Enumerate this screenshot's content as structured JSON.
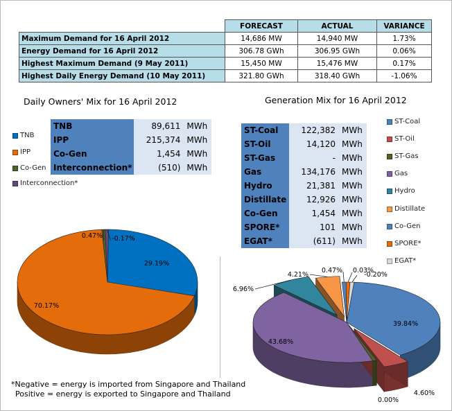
{
  "summary_table": {
    "headers": [
      "",
      "FORECAST",
      "ACTUAL",
      "VARIANCE"
    ],
    "rows": [
      {
        "label": "Maximum Demand for 16 April 2012",
        "forecast": "14,686  MW",
        "actual": "14,940  MW",
        "variance": "1.73%"
      },
      {
        "label": "Energy Demand for 16 April 2012",
        "forecast": "306.78  GWh",
        "actual": "306.95  GWh",
        "variance": "0.06%"
      },
      {
        "label": "Highest Maximum Demand (9 May 2011)",
        "forecast": "15,450  MW",
        "actual": "15,476  MW",
        "variance": "0.17%"
      },
      {
        "label": "Highest Daily Energy Demand (10 May 2011)",
        "forecast": "321.80  GWh",
        "actual": "318.40  GWh",
        "variance": "-1.06%"
      }
    ]
  },
  "owners_mix": {
    "title": "Daily Owners' Mix for 16 April 2012",
    "table": [
      {
        "name": "TNB",
        "value": "89,611",
        "unit": "MWh"
      },
      {
        "name": "IPP",
        "value": "215,374",
        "unit": "MWh"
      },
      {
        "name": "Co-Gen",
        "value": "1,454",
        "unit": "MWh"
      },
      {
        "name": "Interconnection*",
        "value": "(510)",
        "unit": "MWh"
      }
    ],
    "legend": [
      "TNB",
      "IPP",
      "Co-Gen",
      "Interconnection*"
    ]
  },
  "generation_mix": {
    "title": "Generation Mix for 16 April 2012",
    "table": [
      {
        "name": "ST-Coal",
        "value": "122,382",
        "unit": "MWh"
      },
      {
        "name": "ST-Oil",
        "value": "14,120",
        "unit": "MWh"
      },
      {
        "name": "ST-Gas",
        "value": "-",
        "unit": "MWh"
      },
      {
        "name": "Gas",
        "value": "134,176",
        "unit": "MWh"
      },
      {
        "name": "Hydro",
        "value": "21,381",
        "unit": "MWh"
      },
      {
        "name": "Distillate",
        "value": "12,926",
        "unit": "MWh"
      },
      {
        "name": "Co-Gen",
        "value": "1,454",
        "unit": "MWh"
      },
      {
        "name": "SPORE*",
        "value": "101",
        "unit": "MWh"
      },
      {
        "name": "EGAT*",
        "value": "(611)",
        "unit": "MWh"
      }
    ],
    "legend": [
      "ST-Coal",
      "ST-Oil",
      "ST-Gas",
      "Gas",
      "Hydro",
      "Distillate",
      "Co-Gen",
      "SPORE*",
      "EGAT*"
    ]
  },
  "footnote": {
    "line1": "*Negative = energy is imported from Singapore and Thailand",
    "line2": "Positive = energy is exported to Singapore and Thailand"
  },
  "chart_data": [
    {
      "type": "pie",
      "title": "Daily Owners' Mix for 16 April 2012",
      "labels": [
        "TNB",
        "IPP",
        "Co-Gen",
        "Interconnection*"
      ],
      "values": [
        29.19,
        70.17,
        0.47,
        -0.17
      ],
      "data_labels": [
        "29.19%",
        "70.17%",
        "0.47%",
        "-0.17%"
      ],
      "colors": [
        "#0070c0",
        "#e46c0a",
        "#4f6228",
        "#604a7b"
      ],
      "legend": "left"
    },
    {
      "type": "pie",
      "title": "Generation Mix for 16 April 2012",
      "labels": [
        "ST-Coal",
        "ST-Oil",
        "ST-Gas",
        "Gas",
        "Hydro",
        "Distillate",
        "Co-Gen",
        "SPORE*",
        "EGAT*"
      ],
      "values": [
        39.84,
        4.6,
        0.0,
        43.68,
        6.96,
        4.21,
        0.47,
        0.03,
        -0.2
      ],
      "data_labels": [
        "39.84%",
        "4.60%",
        "0.00%",
        "43.68%",
        "6.96%",
        "4.21%",
        "0.47%",
        "0.03%",
        "-0.20%"
      ],
      "colors": [
        "#4f81bd",
        "#c0504d",
        "#4f6228",
        "#8064a2",
        "#31859c",
        "#f79646",
        "#4f81bd",
        "#e46c0a",
        "#d9d9d9"
      ],
      "legend": "right"
    }
  ]
}
